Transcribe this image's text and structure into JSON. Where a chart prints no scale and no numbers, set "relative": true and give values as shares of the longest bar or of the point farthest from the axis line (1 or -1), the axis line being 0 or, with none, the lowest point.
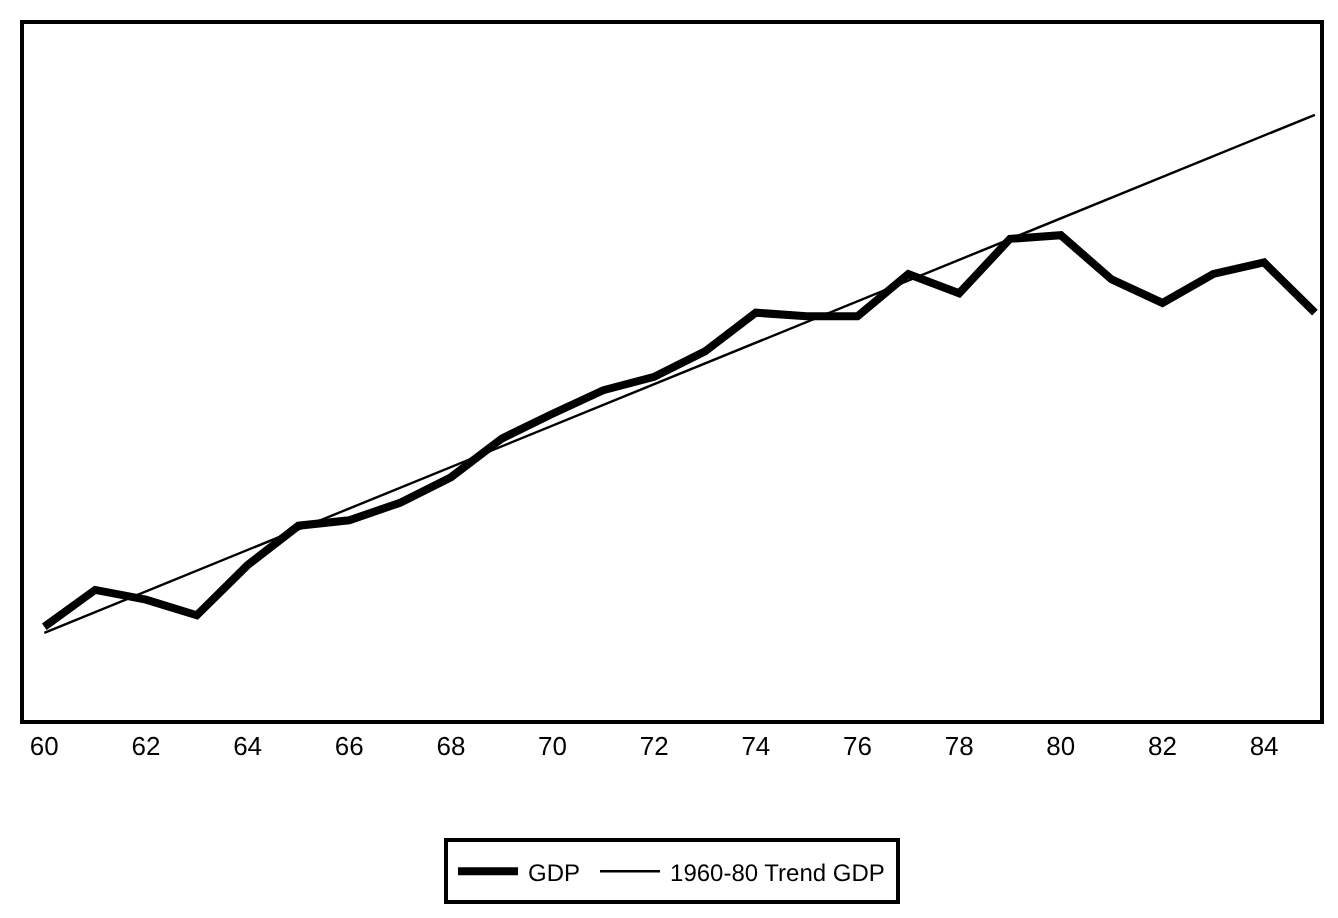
{
  "chart_data": {
    "type": "line",
    "relative": true,
    "xlim": [
      59.6,
      85.1
    ],
    "xticks": [
      60,
      62,
      64,
      66,
      68,
      70,
      72,
      74,
      76,
      78,
      80,
      82,
      84
    ],
    "legend": "bottom",
    "marker": "none",
    "series": [
      {
        "name": "GDP",
        "color": "#000000",
        "x": [
          60,
          61,
          62,
          63,
          64,
          65,
          66,
          67,
          68,
          69,
          70,
          71,
          72,
          73,
          74,
          75,
          76,
          77,
          78,
          79,
          80,
          81,
          82,
          83,
          84,
          85
        ],
        "values": [
          0.154,
          0.215,
          0.199,
          0.173,
          0.256,
          0.321,
          0.33,
          0.359,
          0.401,
          0.465,
          0.506,
          0.545,
          0.567,
          0.609,
          0.673,
          0.667,
          0.667,
          0.737,
          0.705,
          0.795,
          0.801,
          0.728,
          0.689,
          0.737,
          0.756,
          0.673
        ]
      },
      {
        "name": "1960-80 Trend GDP",
        "color": "#000000",
        "x": [
          60,
          85
        ],
        "values": [
          0.144,
          1.0
        ]
      }
    ]
  }
}
